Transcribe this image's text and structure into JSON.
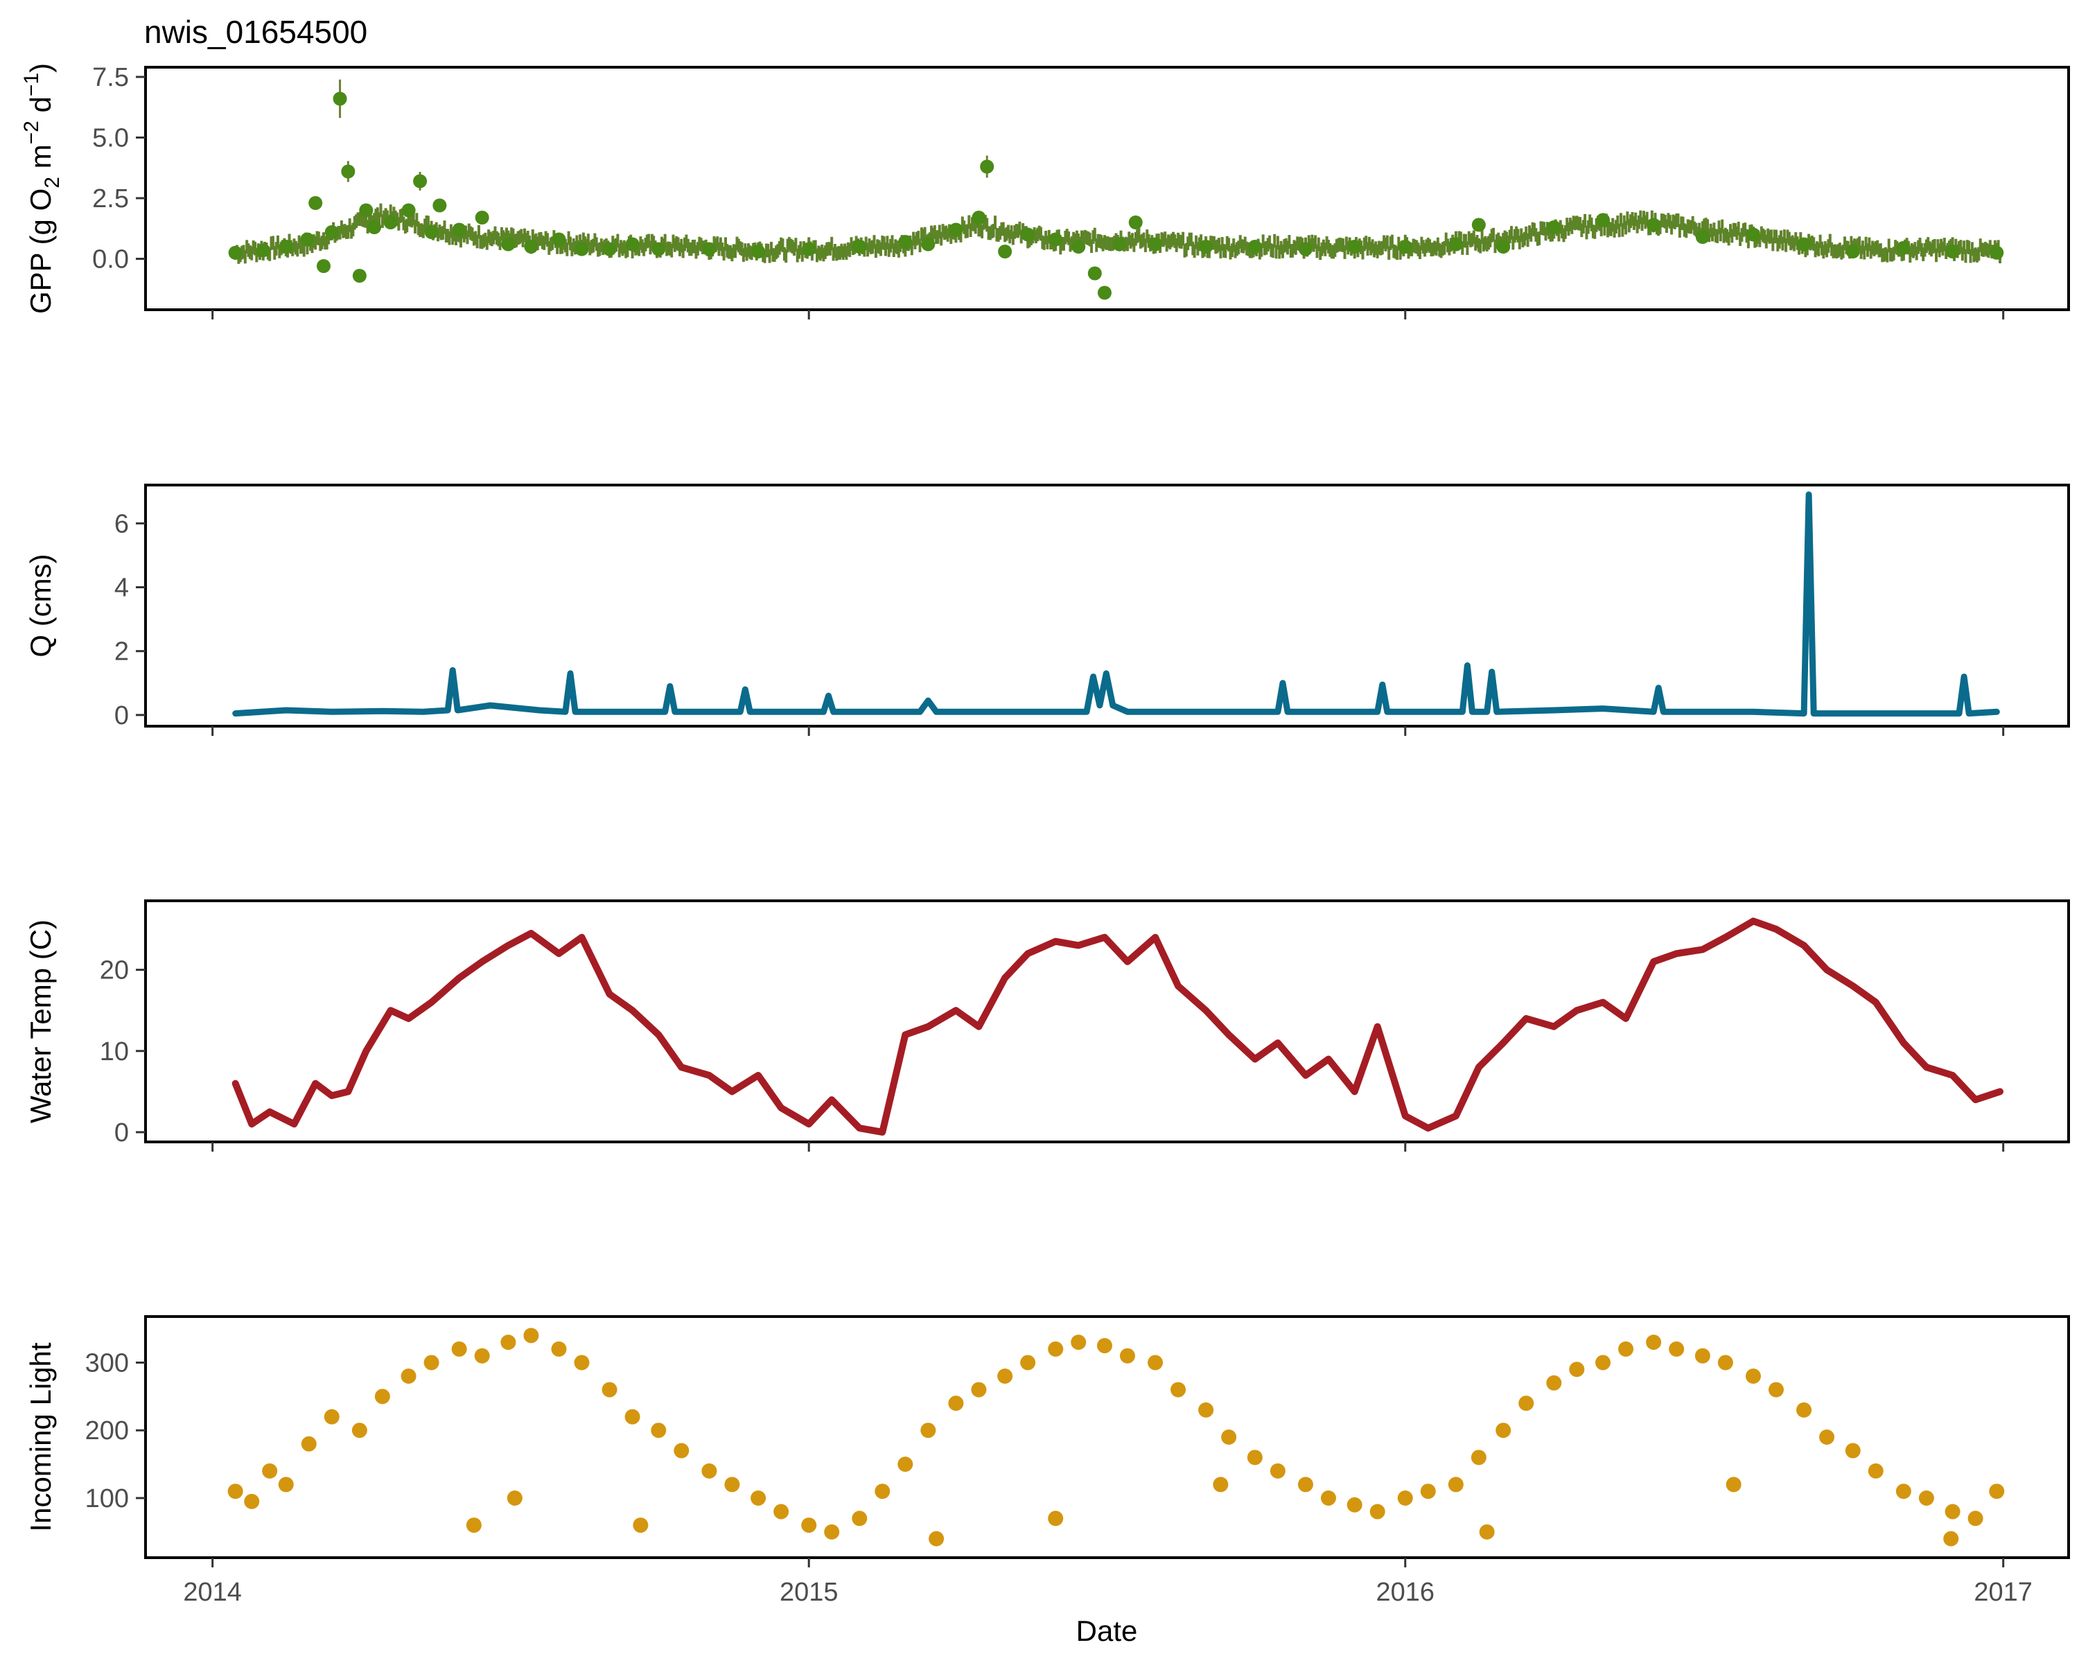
{
  "title": "nwis_01654500",
  "x_axis": {
    "label": "Date",
    "ticks": [
      "2014",
      "2015",
      "2016",
      "2017"
    ]
  },
  "colors": {
    "gpp": "#4a8a16",
    "gpp_band": "#6f7f3a",
    "q": "#0b6b8c",
    "temp": "#a51d24",
    "light": "#d4960f"
  },
  "chart_data": [
    {
      "type": "scatter",
      "name": "gpp",
      "ylabel_parts": [
        "GPP (g  O",
        "2",
        " m",
        "−2",
        " d",
        "−1",
        ")"
      ],
      "ylim": [
        -2.1,
        7.9
      ],
      "yticks": [
        7.5,
        5.0,
        2.5,
        0.0
      ],
      "ytick_labels": [
        "7.5",
        "5.0",
        "2.5",
        "0.0"
      ],
      "xlim": [
        "2013-11-21",
        "2017-02-10"
      ],
      "grid": false,
      "x": [
        "2014-01-15",
        "2014-02-01",
        "2014-02-15",
        "2014-02-28",
        "2014-03-05",
        "2014-03-10",
        "2014-03-15",
        "2014-03-20",
        "2014-03-25",
        "2014-04-01",
        "2014-04-05",
        "2014-04-10",
        "2014-04-20",
        "2014-05-01",
        "2014-05-08",
        "2014-05-15",
        "2014-05-20",
        "2014-06-01",
        "2014-06-15",
        "2014-07-01",
        "2014-07-15",
        "2014-08-01",
        "2014-08-15",
        "2014-09-01",
        "2014-09-15",
        "2014-10-01",
        "2014-11-01",
        "2014-12-01",
        "2015-01-01",
        "2015-02-01",
        "2015-03-01",
        "2015-03-15",
        "2015-04-01",
        "2015-04-15",
        "2015-04-20",
        "2015-05-01",
        "2015-05-15",
        "2015-06-01",
        "2015-06-15",
        "2015-06-25",
        "2015-07-01",
        "2015-07-10",
        "2015-07-20",
        "2015-08-01",
        "2015-09-01",
        "2015-10-01",
        "2015-11-01",
        "2015-12-01",
        "2016-01-01",
        "2016-02-01",
        "2016-02-15",
        "2016-03-01",
        "2016-04-01",
        "2016-05-01",
        "2016-06-01",
        "2016-07-01",
        "2016-08-01",
        "2016-09-01",
        "2016-10-01",
        "2016-11-01",
        "2016-12-01",
        "2016-12-28"
      ],
      "y": [
        0.25,
        0.35,
        0.5,
        0.8,
        2.3,
        -0.3,
        1.1,
        6.6,
        3.6,
        -0.7,
        2.0,
        1.3,
        1.5,
        2.0,
        3.2,
        1.1,
        2.2,
        1.2,
        1.7,
        0.6,
        0.5,
        0.8,
        0.4,
        0.4,
        0.6,
        0.4,
        0.4,
        0.3,
        0.4,
        0.5,
        0.7,
        0.6,
        1.2,
        1.7,
        3.8,
        0.3,
        1.0,
        0.8,
        0.5,
        -0.6,
        -1.4,
        0.6,
        1.5,
        0.6,
        0.5,
        0.5,
        0.4,
        0.5,
        0.5,
        0.6,
        1.4,
        0.5,
        1.3,
        1.6,
        1.4,
        0.9,
        1.0,
        0.6,
        0.3,
        0.45,
        0.3,
        0.25
      ],
      "band_x": [
        "2014-01-15",
        "2014-03-01",
        "2014-04-15",
        "2014-06-01",
        "2014-07-15",
        "2014-09-01",
        "2014-10-15",
        "2014-12-01",
        "2015-01-15",
        "2015-03-01",
        "2015-04-15",
        "2015-06-01",
        "2015-07-15",
        "2015-09-01",
        "2015-10-15",
        "2015-12-01",
        "2016-01-15",
        "2016-03-01",
        "2016-04-15",
        "2016-06-01",
        "2016-07-15",
        "2016-09-01",
        "2016-10-15",
        "2016-12-01",
        "2016-12-30"
      ],
      "band_y": [
        0.25,
        0.6,
        1.8,
        1.0,
        0.7,
        0.55,
        0.5,
        0.35,
        0.4,
        0.6,
        1.4,
        0.7,
        0.8,
        0.5,
        0.5,
        0.45,
        0.5,
        0.8,
        1.3,
        1.5,
        1.1,
        0.6,
        0.35,
        0.4,
        0.25
      ]
    },
    {
      "type": "line",
      "name": "q",
      "ylabel": "Q (cms)",
      "ylim": [
        -0.35,
        7.2
      ],
      "yticks": [
        6,
        4,
        2,
        0
      ],
      "ytick_labels": [
        "6",
        "4",
        "2",
        "0"
      ],
      "xlim": [
        "2013-11-21",
        "2017-02-10"
      ],
      "grid": false,
      "x": [
        "2014-01-15",
        "2014-02-15",
        "2014-03-15",
        "2014-04-15",
        "2014-05-10",
        "2014-05-25",
        "2014-05-28",
        "2014-05-31",
        "2014-06-20",
        "2014-07-20",
        "2014-08-05",
        "2014-08-08",
        "2014-08-11",
        "2014-09-15",
        "2014-10-05",
        "2014-10-08",
        "2014-10-11",
        "2014-11-20",
        "2014-11-23",
        "2014-11-26",
        "2015-01-10",
        "2015-01-13",
        "2015-01-16",
        "2015-03-10",
        "2015-03-15",
        "2015-03-20",
        "2015-05-01",
        "2015-06-20",
        "2015-06-24",
        "2015-06-28",
        "2015-07-02",
        "2015-07-06",
        "2015-07-15",
        "2015-09-01",
        "2015-10-15",
        "2015-10-18",
        "2015-10-21",
        "2015-12-15",
        "2015-12-18",
        "2015-12-21",
        "2016-01-25",
        "2016-02-05",
        "2016-02-08",
        "2016-02-11",
        "2016-02-20",
        "2016-02-23",
        "2016-02-26",
        "2016-04-01",
        "2016-05-01",
        "2016-06-01",
        "2016-06-04",
        "2016-06-07",
        "2016-08-01",
        "2016-09-01",
        "2016-09-04",
        "2016-09-07",
        "2016-10-05",
        "2016-10-08",
        "2016-10-11",
        "2016-10-14",
        "2016-11-20",
        "2016-12-05",
        "2016-12-08",
        "2016-12-11",
        "2016-12-28"
      ],
      "y": [
        0.05,
        0.15,
        0.1,
        0.12,
        0.1,
        0.15,
        1.4,
        0.15,
        0.3,
        0.15,
        0.1,
        1.3,
        0.1,
        0.1,
        0.1,
        0.9,
        0.1,
        0.1,
        0.8,
        0.1,
        0.1,
        0.6,
        0.1,
        0.1,
        0.45,
        0.1,
        0.1,
        0.1,
        1.2,
        0.3,
        1.3,
        0.3,
        0.1,
        0.1,
        0.1,
        1.0,
        0.1,
        0.1,
        0.95,
        0.1,
        0.1,
        0.1,
        1.55,
        0.1,
        0.1,
        1.35,
        0.1,
        0.15,
        0.2,
        0.1,
        0.85,
        0.1,
        0.1,
        0.05,
        6.9,
        0.05,
        0.05,
        0.05,
        0.05,
        0.05,
        0.05,
        0.05,
        1.2,
        0.05,
        0.1
      ]
    },
    {
      "type": "line",
      "name": "temp",
      "ylabel": "Water Temp (C)",
      "ylim": [
        -1.2,
        28.5
      ],
      "yticks": [
        20,
        10,
        0
      ],
      "ytick_labels": [
        "20",
        "10",
        "0"
      ],
      "xlim": [
        "2013-11-21",
        "2017-02-10"
      ],
      "grid": false,
      "x": [
        "2014-01-15",
        "2014-01-25",
        "2014-02-05",
        "2014-02-20",
        "2014-03-05",
        "2014-03-15",
        "2014-03-25",
        "2014-04-05",
        "2014-04-20",
        "2014-05-01",
        "2014-05-15",
        "2014-06-01",
        "2014-06-15",
        "2014-07-01",
        "2014-07-15",
        "2014-08-01",
        "2014-08-15",
        "2014-09-01",
        "2014-09-15",
        "2014-10-01",
        "2014-10-15",
        "2014-11-01",
        "2014-11-15",
        "2014-12-01",
        "2014-12-15",
        "2015-01-01",
        "2015-01-15",
        "2015-02-01",
        "2015-02-15",
        "2015-03-01",
        "2015-03-15",
        "2015-04-01",
        "2015-04-15",
        "2015-05-01",
        "2015-05-15",
        "2015-06-01",
        "2015-06-15",
        "2015-07-01",
        "2015-07-15",
        "2015-08-01",
        "2015-08-15",
        "2015-09-01",
        "2015-09-15",
        "2015-10-01",
        "2015-10-15",
        "2015-11-01",
        "2015-11-15",
        "2015-12-01",
        "2015-12-15",
        "2016-01-01",
        "2016-01-15",
        "2016-02-01",
        "2016-02-15",
        "2016-03-01",
        "2016-03-15",
        "2016-04-01",
        "2016-04-15",
        "2016-05-01",
        "2016-05-15",
        "2016-06-01",
        "2016-06-15",
        "2016-07-01",
        "2016-07-15",
        "2016-08-01",
        "2016-08-15",
        "2016-09-01",
        "2016-09-15",
        "2016-10-01",
        "2016-10-15",
        "2016-11-01",
        "2016-11-15",
        "2016-12-01",
        "2016-12-15",
        "2016-12-30"
      ],
      "y": [
        6,
        1,
        2.5,
        1,
        6,
        4.5,
        5,
        10,
        15,
        14,
        16,
        19,
        21,
        23,
        24.5,
        22,
        24,
        17,
        15,
        12,
        8,
        7,
        5,
        7,
        3,
        1,
        4,
        0.5,
        0,
        12,
        13,
        15,
        13,
        19,
        22,
        23.5,
        23,
        24,
        21,
        24,
        18,
        15,
        12,
        9,
        11,
        7,
        9,
        5,
        13,
        2,
        0.5,
        2,
        8,
        11,
        14,
        13,
        15,
        16,
        14,
        21,
        22,
        22.5,
        24,
        26,
        25,
        23,
        20,
        18,
        16,
        11,
        8,
        7,
        4,
        5
      ]
    },
    {
      "type": "scatter",
      "name": "light",
      "ylabel": "Incoming Light",
      "ylim": [
        12,
        368
      ],
      "yticks": [
        300,
        200,
        100
      ],
      "ytick_labels": [
        "300",
        "200",
        "100"
      ],
      "xlim": [
        "2013-11-21",
        "2017-02-10"
      ],
      "grid": false,
      "x": [
        "2014-01-15",
        "2014-01-25",
        "2014-02-05",
        "2014-02-15",
        "2014-03-01",
        "2014-03-15",
        "2014-04-01",
        "2014-04-15",
        "2014-05-01",
        "2014-05-15",
        "2014-06-01",
        "2014-06-15",
        "2014-07-01",
        "2014-07-15",
        "2014-08-01",
        "2014-08-15",
        "2014-09-01",
        "2014-09-15",
        "2014-10-01",
        "2014-10-15",
        "2014-11-01",
        "2014-11-15",
        "2014-12-01",
        "2014-12-15",
        "2015-01-01",
        "2015-01-15",
        "2015-02-01",
        "2015-02-15",
        "2015-03-01",
        "2015-03-15",
        "2015-04-01",
        "2015-04-15",
        "2015-05-01",
        "2015-05-15",
        "2015-06-01",
        "2015-06-15",
        "2015-07-01",
        "2015-07-15",
        "2015-08-01",
        "2015-08-15",
        "2015-09-01",
        "2015-09-15",
        "2015-10-01",
        "2015-10-15",
        "2015-11-01",
        "2015-11-15",
        "2015-12-01",
        "2015-12-15",
        "2016-01-01",
        "2016-01-15",
        "2016-02-01",
        "2016-02-15",
        "2016-03-01",
        "2016-03-15",
        "2016-04-01",
        "2016-04-15",
        "2016-05-01",
        "2016-05-15",
        "2016-06-01",
        "2016-06-15",
        "2016-07-01",
        "2016-07-15",
        "2016-08-01",
        "2016-08-15",
        "2016-09-01",
        "2016-09-15",
        "2016-10-01",
        "2016-10-15",
        "2016-11-01",
        "2016-11-15",
        "2016-12-01",
        "2016-12-15",
        "2016-12-28",
        "2014-06-10",
        "2014-07-05",
        "2014-09-20",
        "2015-03-20",
        "2015-06-01",
        "2015-09-10",
        "2016-02-20",
        "2016-07-20",
        "2016-11-30"
      ],
      "y": [
        110,
        95,
        140,
        120,
        180,
        220,
        200,
        250,
        280,
        300,
        320,
        310,
        330,
        340,
        320,
        300,
        260,
        220,
        200,
        170,
        140,
        120,
        100,
        80,
        60,
        50,
        70,
        110,
        150,
        200,
        240,
        260,
        280,
        300,
        320,
        330,
        325,
        310,
        300,
        260,
        230,
        190,
        160,
        140,
        120,
        100,
        90,
        80,
        100,
        110,
        120,
        160,
        200,
        240,
        270,
        290,
        300,
        320,
        330,
        320,
        310,
        300,
        280,
        260,
        230,
        190,
        170,
        140,
        110,
        100,
        80,
        70,
        110,
        60,
        100,
        60,
        40,
        70,
        120,
        50,
        120,
        40
      ]
    }
  ]
}
